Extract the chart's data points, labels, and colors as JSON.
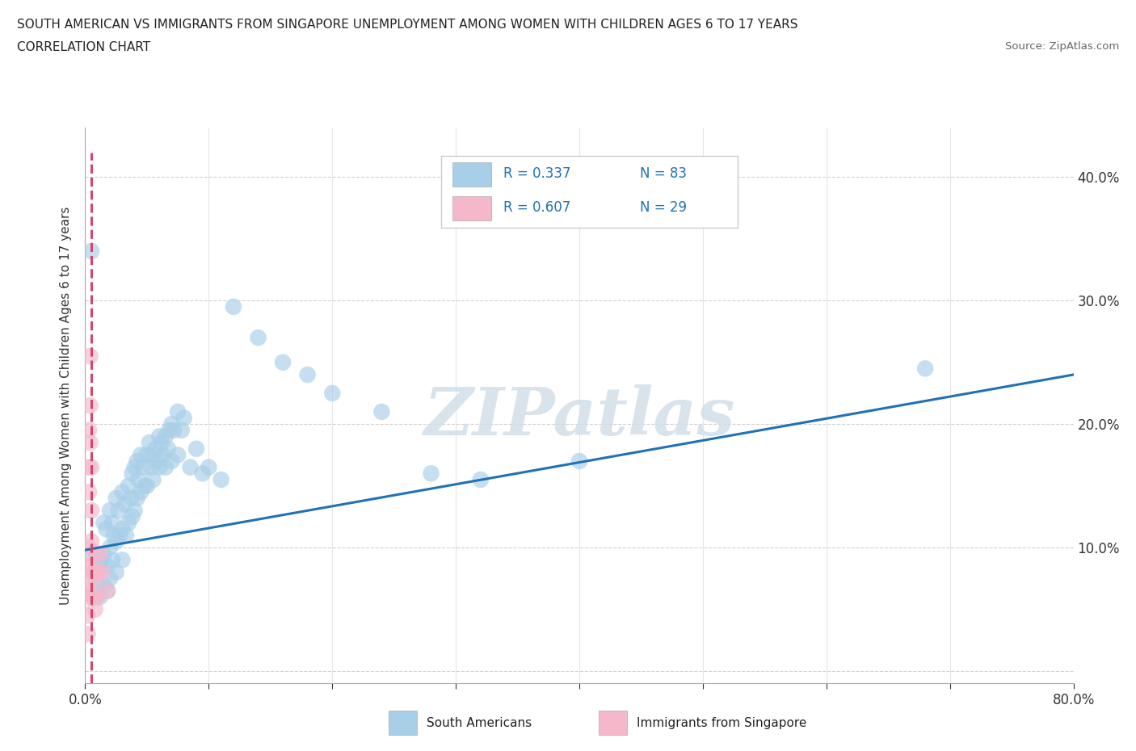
{
  "title_line1": "SOUTH AMERICAN VS IMMIGRANTS FROM SINGAPORE UNEMPLOYMENT AMONG WOMEN WITH CHILDREN AGES 6 TO 17 YEARS",
  "title_line2": "CORRELATION CHART",
  "source": "Source: ZipAtlas.com",
  "ylabel": "Unemployment Among Women with Children Ages 6 to 17 years",
  "x_min": 0.0,
  "x_max": 0.8,
  "y_min": -0.01,
  "y_max": 0.44,
  "x_ticks": [
    0.0,
    0.1,
    0.2,
    0.3,
    0.4,
    0.5,
    0.6,
    0.7,
    0.8
  ],
  "y_ticks": [
    0.0,
    0.1,
    0.2,
    0.3,
    0.4
  ],
  "legend_r_blue": "R = 0.337",
  "legend_n_blue": "N = 83",
  "legend_r_pink": "R = 0.607",
  "legend_n_pink": "N = 29",
  "color_blue": "#a8cfe8",
  "color_pink": "#f5b8cb",
  "color_blue_line": "#2171b5",
  "color_pink_line": "#d6456b",
  "color_legend_text": "#2171b5",
  "watermark": "ZIPatlas",
  "blue_scatter_x": [
    0.005,
    0.007,
    0.008,
    0.01,
    0.01,
    0.012,
    0.012,
    0.013,
    0.015,
    0.015,
    0.015,
    0.017,
    0.018,
    0.018,
    0.02,
    0.02,
    0.02,
    0.022,
    0.022,
    0.023,
    0.025,
    0.025,
    0.025,
    0.027,
    0.028,
    0.03,
    0.03,
    0.03,
    0.032,
    0.033,
    0.035,
    0.035,
    0.037,
    0.038,
    0.038,
    0.04,
    0.04,
    0.042,
    0.042,
    0.043,
    0.045,
    0.045,
    0.047,
    0.048,
    0.05,
    0.05,
    0.052,
    0.053,
    0.055,
    0.055,
    0.057,
    0.058,
    0.06,
    0.06,
    0.062,
    0.063,
    0.065,
    0.065,
    0.067,
    0.068,
    0.07,
    0.07,
    0.072,
    0.075,
    0.075,
    0.078,
    0.08,
    0.085,
    0.09,
    0.095,
    0.1,
    0.11,
    0.12,
    0.14,
    0.16,
    0.18,
    0.2,
    0.24,
    0.28,
    0.32,
    0.4,
    0.68,
    0.005
  ],
  "blue_scatter_y": [
    0.095,
    0.08,
    0.06,
    0.095,
    0.07,
    0.085,
    0.06,
    0.09,
    0.12,
    0.095,
    0.07,
    0.115,
    0.085,
    0.065,
    0.13,
    0.1,
    0.075,
    0.12,
    0.09,
    0.11,
    0.14,
    0.105,
    0.08,
    0.13,
    0.11,
    0.145,
    0.115,
    0.09,
    0.135,
    0.11,
    0.15,
    0.12,
    0.14,
    0.16,
    0.125,
    0.165,
    0.13,
    0.17,
    0.14,
    0.155,
    0.175,
    0.145,
    0.165,
    0.15,
    0.175,
    0.15,
    0.185,
    0.165,
    0.175,
    0.155,
    0.18,
    0.17,
    0.19,
    0.165,
    0.185,
    0.175,
    0.19,
    0.165,
    0.18,
    0.195,
    0.2,
    0.17,
    0.195,
    0.21,
    0.175,
    0.195,
    0.205,
    0.165,
    0.18,
    0.16,
    0.165,
    0.155,
    0.295,
    0.27,
    0.25,
    0.24,
    0.225,
    0.21,
    0.16,
    0.155,
    0.17,
    0.245,
    0.34
  ],
  "pink_scatter_x": [
    0.002,
    0.002,
    0.002,
    0.002,
    0.002,
    0.003,
    0.003,
    0.003,
    0.003,
    0.003,
    0.003,
    0.004,
    0.004,
    0.004,
    0.005,
    0.005,
    0.005,
    0.006,
    0.006,
    0.007,
    0.007,
    0.008,
    0.008,
    0.009,
    0.01,
    0.01,
    0.012,
    0.014,
    0.018
  ],
  "pink_scatter_y": [
    0.085,
    0.07,
    0.06,
    0.045,
    0.03,
    0.195,
    0.165,
    0.145,
    0.1,
    0.085,
    0.065,
    0.255,
    0.215,
    0.185,
    0.165,
    0.13,
    0.105,
    0.08,
    0.06,
    0.08,
    0.06,
    0.075,
    0.05,
    0.095,
    0.08,
    0.06,
    0.095,
    0.08,
    0.065
  ],
  "blue_line_x": [
    0.0,
    0.8
  ],
  "blue_line_y": [
    0.098,
    0.24
  ],
  "pink_line_x": [
    0.005,
    0.005
  ],
  "pink_line_y": [
    -0.01,
    0.42
  ]
}
